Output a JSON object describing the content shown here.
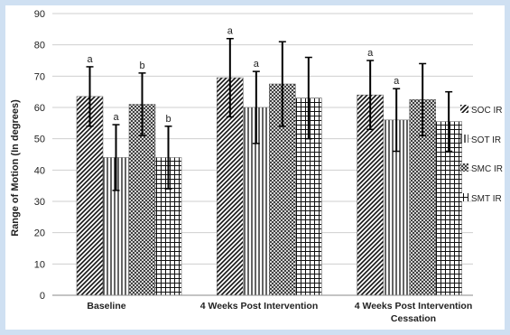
{
  "chart_data": {
    "type": "bar",
    "title": "",
    "xlabel": "",
    "ylabel": "Range of Motion (In degrees)",
    "ylim": [
      0,
      90
    ],
    "yticks": [
      0,
      10,
      20,
      30,
      40,
      50,
      60,
      70,
      80,
      90
    ],
    "grid": true,
    "legend_position": "right",
    "categories": [
      "Baseline",
      "4 Weeks Post Intervention",
      "4 Weeks Post Intervention Cessation"
    ],
    "series": [
      {
        "name": "SOC IR",
        "pattern": "diagonal",
        "values": [
          63.5,
          69.5,
          64
        ],
        "error": [
          9.5,
          12.5,
          11
        ],
        "letters": [
          "a",
          "a",
          "a"
        ]
      },
      {
        "name": "SOT IR",
        "pattern": "vertical",
        "values": [
          44,
          60,
          56
        ],
        "error": [
          10.5,
          11.5,
          10
        ],
        "letters": [
          "a",
          "a",
          "a"
        ]
      },
      {
        "name": "SMC IR",
        "pattern": "crosshatch",
        "values": [
          61,
          67.5,
          62.5
        ],
        "error": [
          10,
          13.5,
          11.5
        ],
        "letters": [
          "b",
          "",
          ""
        ]
      },
      {
        "name": "SMT IR",
        "pattern": "grid",
        "values": [
          44,
          63,
          55.5
        ],
        "error": [
          10,
          13,
          9.5
        ],
        "letters": [
          "b",
          "",
          ""
        ]
      }
    ]
  }
}
